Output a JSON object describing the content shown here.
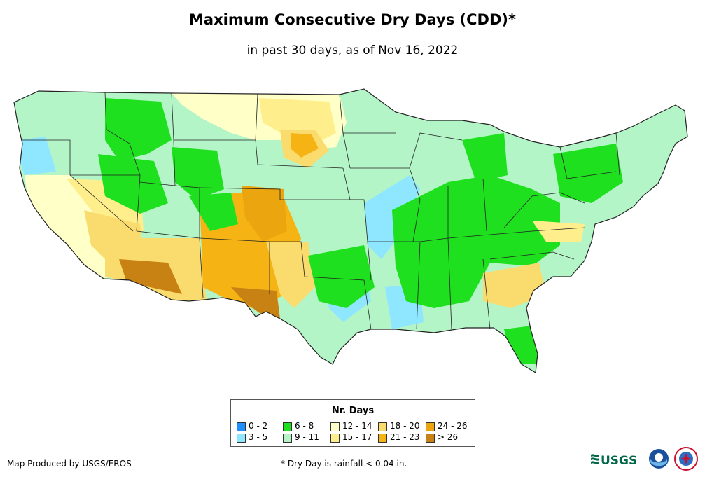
{
  "title": "Maximum Consecutive Dry Days (CDD)*",
  "subtitle": "in past 30 days, as of Nov 16, 2022",
  "legend": {
    "title": "Nr. Days",
    "items": [
      {
        "label": "0 - 2",
        "color": "#1e90ff"
      },
      {
        "label": "3 - 5",
        "color": "#8ee6ff"
      },
      {
        "label": "6 - 8",
        "color": "#1ee01e"
      },
      {
        "label": "9 - 11",
        "color": "#b4f5c8"
      },
      {
        "label": "12 - 14",
        "color": "#ffffc8"
      },
      {
        "label": "15 - 17",
        "color": "#ffee8c"
      },
      {
        "label": "18 - 20",
        "color": "#fadc6e"
      },
      {
        "label": "21 - 23",
        "color": "#f5b414"
      },
      {
        "label": "24 - 26",
        "color": "#eba50f"
      },
      {
        "label": "> 26",
        "color": "#c88214"
      }
    ]
  },
  "credit": "Map Produced by USGS/EROS",
  "footnote": "* Dry Day is rainfall < 0.04 in.",
  "logos": {
    "usgs": "USGS"
  },
  "map": {
    "name": "Contiguous United States",
    "ocean_color": "#ffffff",
    "border_color": "#222222"
  }
}
